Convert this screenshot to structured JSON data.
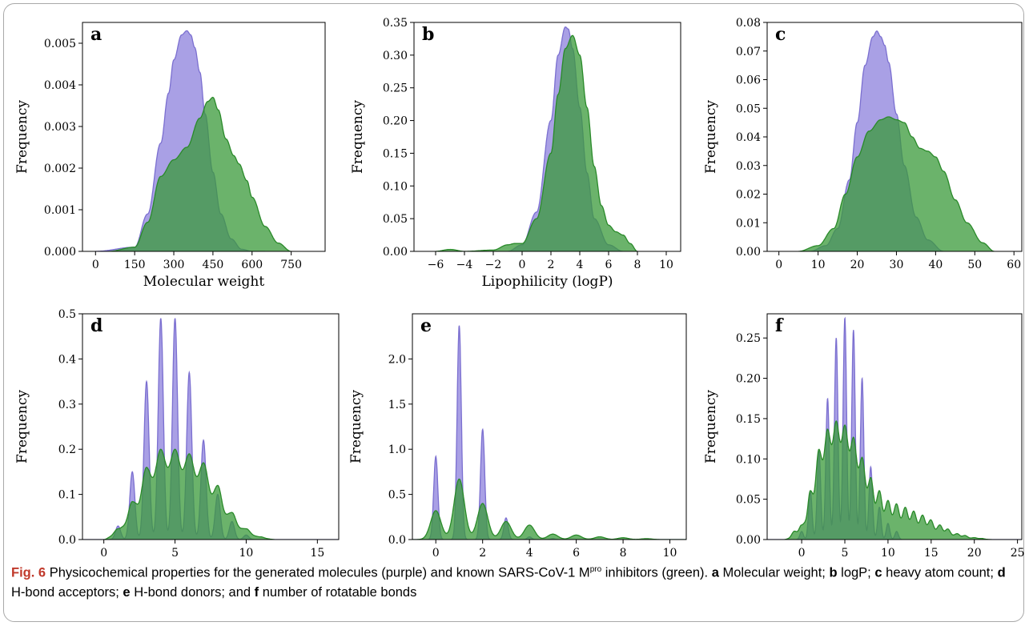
{
  "colors": {
    "generated": "#9a8fe0",
    "generated_edge": "#7b6fd0",
    "known": "#3a9a3a",
    "known_edge": "#2a8a2a"
  },
  "legend_map": {
    "generated": "purple",
    "known": "green"
  },
  "caption": {
    "fig_no": "Fig. 6",
    "before_sup": "Physicochemical properties for the generated molecules (purple) and known SARS-CoV-1 M",
    "sup": "pro",
    "after_sup": " inhibitors (green).",
    "items": [
      {
        "letter": "a",
        "text": " Molecular weight;"
      },
      {
        "letter": "b",
        "text": " logP;"
      },
      {
        "letter": "c",
        "text": " heavy atom count;"
      },
      {
        "letter": "d",
        "text": " H-bond acceptors;"
      },
      {
        "letter": "e",
        "text": " H-bond donors; and"
      },
      {
        "letter": "f",
        "text": " number of rotatable bonds"
      }
    ]
  },
  "chart_data": [
    {
      "panel": "a",
      "type": "area",
      "xlabel": "Molecular weight",
      "ylabel": "Frequency",
      "xlim": [
        -50,
        880
      ],
      "ylim": [
        0,
        0.0055
      ],
      "xticks": [
        0,
        150,
        300,
        450,
        600,
        750
      ],
      "xtick_labels": [
        "0",
        "150",
        "300",
        "450",
        "600",
        "750"
      ],
      "yticks": [
        0,
        0.001,
        0.002,
        0.003,
        0.004,
        0.005
      ],
      "ytick_labels": [
        "0.000",
        "0.001",
        "0.002",
        "0.003",
        "0.004",
        "0.005"
      ],
      "series": [
        {
          "kind": "generated",
          "x": [
            0,
            150,
            200,
            250,
            280,
            300,
            330,
            350,
            365,
            380,
            400,
            420,
            450,
            480,
            520,
            560,
            600,
            650
          ],
          "y": [
            0,
            0.0001,
            0.0009,
            0.0026,
            0.0038,
            0.0046,
            0.0052,
            0.0053,
            0.0052,
            0.0049,
            0.0043,
            0.0033,
            0.0019,
            0.0009,
            0.0003,
            5e-05,
            0,
            0
          ]
        },
        {
          "kind": "known",
          "x": [
            50,
            150,
            200,
            250,
            300,
            350,
            400,
            430,
            450,
            470,
            500,
            530,
            550,
            580,
            600,
            650,
            700,
            750
          ],
          "y": [
            0,
            0.0001,
            0.0007,
            0.0018,
            0.0022,
            0.0025,
            0.0032,
            0.0036,
            0.0037,
            0.0034,
            0.0027,
            0.0023,
            0.0021,
            0.0017,
            0.0013,
            0.0006,
            0.0002,
            0
          ]
        }
      ]
    },
    {
      "panel": "b",
      "type": "area",
      "xlabel": "Lipophilicity (logP)",
      "ylabel": "Frequency",
      "xlim": [
        -7.5,
        11
      ],
      "ylim": [
        0,
        0.35
      ],
      "xticks": [
        -6,
        -4,
        -2,
        0,
        2,
        4,
        6,
        8,
        10
      ],
      "xtick_labels": [
        "−6",
        "−4",
        "−2",
        "0",
        "2",
        "4",
        "6",
        "8",
        "10"
      ],
      "yticks": [
        0,
        0.05,
        0.1,
        0.15,
        0.2,
        0.25,
        0.3,
        0.35
      ],
      "ytick_labels": [
        "0.00",
        "0.05",
        "0.10",
        "0.15",
        "0.20",
        "0.25",
        "0.30",
        "0.35"
      ],
      "series": [
        {
          "kind": "generated",
          "x": [
            -1,
            0,
            1,
            2,
            2.5,
            3,
            3.2,
            3.5,
            4,
            4.5,
            5,
            6,
            7
          ],
          "y": [
            0,
            0.01,
            0.06,
            0.2,
            0.3,
            0.343,
            0.34,
            0.31,
            0.22,
            0.12,
            0.05,
            0.01,
            0
          ]
        },
        {
          "kind": "known",
          "x": [
            -6,
            -5,
            -4,
            -2,
            -1,
            -0.5,
            0,
            1,
            2,
            2.5,
            3,
            3.5,
            4,
            4.5,
            5,
            5.5,
            6,
            6.5,
            7,
            7.5,
            8
          ],
          "y": [
            0,
            0.003,
            0,
            0.002,
            0.01,
            0.012,
            0.012,
            0.05,
            0.15,
            0.24,
            0.31,
            0.33,
            0.3,
            0.22,
            0.13,
            0.07,
            0.04,
            0.03,
            0.025,
            0.012,
            0
          ]
        }
      ]
    },
    {
      "panel": "c",
      "type": "area",
      "xlabel": "",
      "ylabel": "Frequency",
      "xlim": [
        -3,
        62
      ],
      "ylim": [
        0,
        0.08
      ],
      "xticks": [
        0,
        10,
        20,
        30,
        40,
        50,
        60
      ],
      "xtick_labels": [
        "0",
        "10",
        "20",
        "30",
        "40",
        "50",
        "60"
      ],
      "yticks": [
        0,
        0.01,
        0.02,
        0.03,
        0.04,
        0.05,
        0.06,
        0.07,
        0.08
      ],
      "ytick_labels": [
        "0.00",
        "0.01",
        "0.02",
        "0.03",
        "0.04",
        "0.05",
        "0.06",
        "0.07",
        "0.08"
      ],
      "series": [
        {
          "kind": "generated",
          "x": [
            8,
            12,
            15,
            18,
            20,
            22,
            24,
            25,
            26,
            27,
            28,
            30,
            32,
            35,
            38,
            42
          ],
          "y": [
            0,
            0.002,
            0.008,
            0.025,
            0.045,
            0.065,
            0.075,
            0.077,
            0.075,
            0.072,
            0.066,
            0.048,
            0.03,
            0.012,
            0.004,
            0
          ],
          "trailing_dense": true
        },
        {
          "kind": "known",
          "x": [
            5,
            10,
            14,
            17,
            20,
            23,
            26,
            28,
            30,
            32,
            34,
            36,
            38,
            40,
            42,
            45,
            48,
            52,
            55
          ],
          "y": [
            0,
            0.002,
            0.008,
            0.02,
            0.033,
            0.042,
            0.046,
            0.047,
            0.046,
            0.045,
            0.04,
            0.036,
            0.035,
            0.033,
            0.028,
            0.018,
            0.01,
            0.003,
            0
          ]
        }
      ]
    },
    {
      "panel": "d",
      "type": "area",
      "xlabel": "H-bond acceptors",
      "ylabel": "Frequency",
      "xlim": [
        -1.5,
        16.5
      ],
      "ylim": [
        0,
        0.5
      ],
      "xticks": [
        0,
        5,
        10,
        15
      ],
      "xtick_labels": [
        "0",
        "5",
        "10",
        "15"
      ],
      "yticks": [
        0,
        0.1,
        0.2,
        0.3,
        0.4,
        0.5
      ],
      "ytick_labels": [
        "0.0",
        "0.1",
        "0.2",
        "0.3",
        "0.4",
        "0.5"
      ],
      "spikes": {
        "kind": "generated",
        "centers": [
          1,
          2,
          3,
          4,
          5,
          6,
          7,
          8,
          9,
          10
        ],
        "heights": [
          0.03,
          0.15,
          0.35,
          0.49,
          0.49,
          0.37,
          0.22,
          0.1,
          0.04,
          0.01
        ],
        "width": 0.18
      },
      "series": [
        {
          "kind": "known",
          "x": [
            0,
            1,
            2,
            3,
            4,
            5,
            6,
            7,
            8,
            9,
            10,
            11,
            12
          ],
          "y": [
            0,
            0.02,
            0.07,
            0.14,
            0.18,
            0.18,
            0.17,
            0.15,
            0.1,
            0.05,
            0.02,
            0.005,
            0
          ],
          "ripple": 0.02
        }
      ]
    },
    {
      "panel": "e",
      "type": "area",
      "xlabel": "H-bond donors",
      "ylabel": "Frequency",
      "xlim": [
        -1,
        10.7
      ],
      "ylim": [
        0,
        2.5
      ],
      "xticks": [
        0,
        2,
        4,
        6,
        8,
        10
      ],
      "xtick_labels": [
        "0",
        "2",
        "4",
        "6",
        "8",
        "10"
      ],
      "yticks": [
        0,
        0.5,
        1.0,
        1.5,
        2.0
      ],
      "ytick_labels": [
        "0.0",
        "0.5",
        "1.0",
        "1.5",
        "2.0"
      ],
      "spikes": {
        "kind": "generated",
        "centers": [
          0,
          1,
          2,
          3,
          4,
          5
        ],
        "heights": [
          0.92,
          2.37,
          1.22,
          0.24,
          0.03,
          0.01
        ],
        "width": 0.09
      },
      "series": [
        {
          "kind": "known",
          "spikes": {
            "centers": [
              0,
              1,
              2,
              3,
              4,
              5,
              6,
              7,
              8,
              9
            ],
            "heights": [
              0.32,
              0.67,
              0.4,
              0.2,
              0.16,
              0.06,
              0.05,
              0.03,
              0.02,
              0.01
            ],
            "width": 0.22
          }
        }
      ]
    },
    {
      "panel": "f",
      "type": "area",
      "xlabel": "Rotatable bonds",
      "ylabel": "Frequency",
      "xlim": [
        -4,
        25.5
      ],
      "ylim": [
        0,
        0.28
      ],
      "xticks": [
        0,
        5,
        10,
        15,
        20,
        25
      ],
      "xtick_labels": [
        "0",
        "5",
        "10",
        "15",
        "20",
        "25"
      ],
      "yticks": [
        0,
        0.05,
        0.1,
        0.15,
        0.2,
        0.25
      ],
      "ytick_labels": [
        "0.00",
        "0.05",
        "0.10",
        "0.15",
        "0.20",
        "0.25"
      ],
      "spikes": {
        "kind": "generated",
        "centers": [
          0,
          1,
          2,
          3,
          4,
          5,
          6,
          7,
          8,
          9,
          10,
          11
        ],
        "heights": [
          0.01,
          0.06,
          0.11,
          0.175,
          0.25,
          0.275,
          0.26,
          0.2,
          0.09,
          0.04,
          0.02,
          0.01
        ],
        "width": 0.2
      },
      "series": [
        {
          "kind": "known",
          "x": [
            -2,
            0,
            1,
            2,
            3,
            4,
            5,
            6,
            7,
            8,
            9,
            10,
            12,
            14,
            16,
            18,
            20,
            22
          ],
          "y": [
            0,
            0.015,
            0.05,
            0.1,
            0.125,
            0.135,
            0.13,
            0.115,
            0.09,
            0.065,
            0.05,
            0.04,
            0.033,
            0.025,
            0.015,
            0.006,
            0.002,
            0
          ],
          "ripple": 0.012
        }
      ]
    }
  ],
  "panels_layout_note": "x-axis label printed only where shown; panel c has none"
}
